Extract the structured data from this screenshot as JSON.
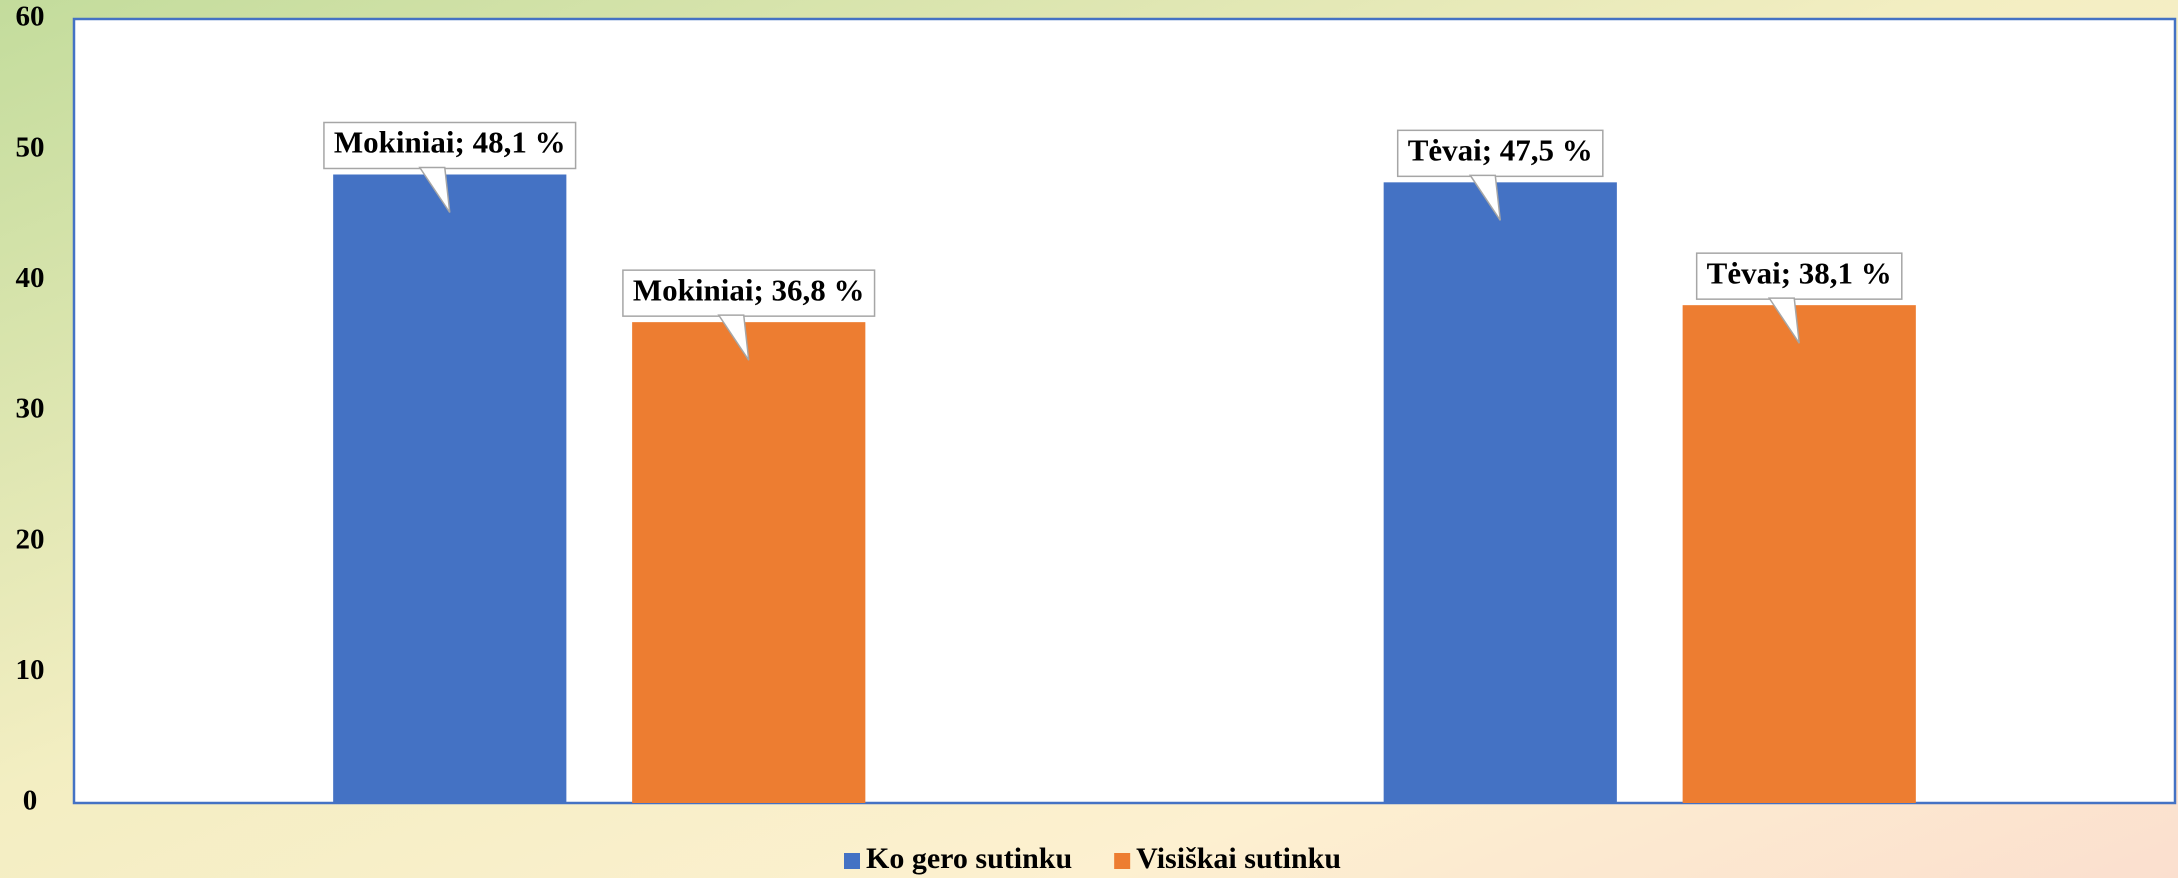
{
  "chart_data": {
    "type": "bar",
    "categories": [
      null,
      null
    ],
    "series": [
      {
        "name": "Ko gero sutinku",
        "color": "#4472c4",
        "values": [
          48.1,
          47.5
        ],
        "value_labels": [
          "Mokiniai; 48,1 %",
          "Tėvai; 47,5 %"
        ]
      },
      {
        "name": "Visiškai sutinku",
        "color": "#ed7d31",
        "values": [
          36.8,
          38.1
        ],
        "value_labels": [
          "Mokiniai; 36,8 %",
          "Tėvai; 38,1 %"
        ]
      }
    ],
    "ylim": [
      0,
      60
    ],
    "yticks": [
      0,
      10,
      20,
      30,
      40,
      50,
      60
    ],
    "grid": false,
    "legend": "bottom"
  }
}
